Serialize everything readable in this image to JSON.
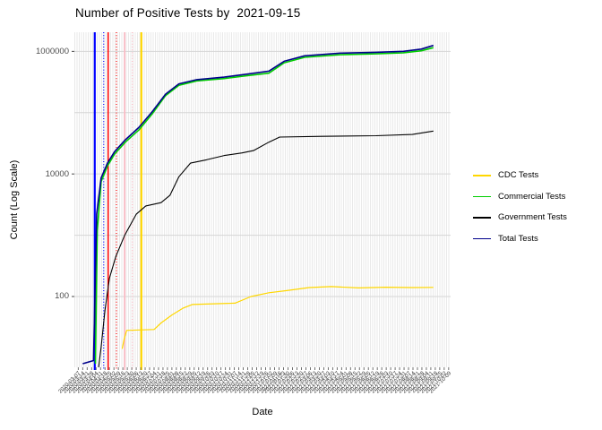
{
  "title": "Number of Positive Tests by  2021-09-15",
  "axes": {
    "y_title": "Count (Log Scale)",
    "x_title": "Date"
  },
  "legend": {
    "items": [
      {
        "label": "CDC Tests",
        "color": "#FFD700"
      },
      {
        "label": "Commercial Tests",
        "color": "#00CD00"
      },
      {
        "label": "Government Tests",
        "color": "#000000"
      },
      {
        "label": "Total Tests",
        "color": "#00008B"
      }
    ]
  },
  "colors": {
    "major_gridline": "#d6d6d6",
    "minor_stripe": "#e9e9e9",
    "tick": "#333333",
    "tick_label": "#4d4d4d"
  },
  "chart_data": {
    "type": "line",
    "title": "Number of Positive Tests by  2021-09-15",
    "xlabel": "Date",
    "ylabel": "Count (Log Scale)",
    "y_scale": "log10",
    "ylim": [
      7,
      2050000
    ],
    "x_domain": [
      "2020-03-01",
      "2021-10-12"
    ],
    "grid": "dense vertical minor stripes, horizontal major lines at powers of 10",
    "legend_position": "right",
    "y_ticks": [
      {
        "label": "1000000",
        "value": 1000000
      },
      {
        "label": "10000",
        "value": 10000
      },
      {
        "label": "100",
        "value": 100
      }
    ],
    "y_major_gridlines": [
      100,
      1000,
      10000,
      100000,
      1000000
    ],
    "x_tick_dates": [
      "2020-03-07",
      "2020-03-14",
      "2020-03-21",
      "2020-03-28",
      "2020-04-04",
      "2020-04-11",
      "2020-04-18",
      "2020-04-25",
      "2020-05-02",
      "2020-05-09",
      "2020-05-16",
      "2020-05-23",
      "2020-05-30",
      "2020-06-06",
      "2020-06-13",
      "2020-06-20",
      "2020-06-27",
      "2020-07-04",
      "2020-07-11",
      "2020-07-18",
      "2020-07-25",
      "2020-08-01",
      "2020-08-08",
      "2020-08-15",
      "2020-08-22",
      "2020-08-29",
      "2020-09-05",
      "2020-09-12",
      "2020-09-19",
      "2020-09-26",
      "2020-10-03",
      "2020-10-10",
      "2020-10-17",
      "2020-10-24",
      "2020-10-31",
      "2020-11-07",
      "2020-11-14",
      "2020-11-21",
      "2020-11-28",
      "2020-12-05",
      "2020-12-12",
      "2020-12-19",
      "2020-12-26",
      "2021-01-02",
      "2021-01-09",
      "2021-01-16",
      "2021-01-23",
      "2021-01-30",
      "2021-02-06",
      "2021-02-13",
      "2021-02-20",
      "2021-02-27",
      "2021-03-06",
      "2021-03-13",
      "2021-03-20",
      "2021-03-27",
      "2021-04-03",
      "2021-04-10",
      "2021-04-17",
      "2021-04-24",
      "2021-05-01",
      "2021-05-08",
      "2021-05-15",
      "2021-05-22",
      "2021-05-29",
      "2021-06-05",
      "2021-06-12",
      "2021-06-19",
      "2021-06-26",
      "2021-07-03",
      "2021-07-10",
      "2021-07-17",
      "2021-07-24",
      "2021-07-31",
      "2021-08-07",
      "2021-08-14",
      "2021-08-21",
      "2021-08-28",
      "2021-09-04",
      "2021-09-11",
      "2021-09-18",
      "2021-09-25",
      "2021-10-02",
      "2021-10-09"
    ],
    "vlines": [
      {
        "date": "2020-04-02",
        "color": "#0000FF",
        "style": "solid",
        "width": 2.2
      },
      {
        "date": "2020-04-16",
        "color": "#0000FF",
        "style": "dotted",
        "width": 1.2
      },
      {
        "date": "2020-04-23",
        "color": "#FF0000",
        "style": "solid",
        "width": 1.5
      },
      {
        "date": "2020-05-06",
        "color": "#FF0000",
        "style": "dotted",
        "width": 1.2
      },
      {
        "date": "2020-05-19",
        "color": "#FFB6C1",
        "style": "solid",
        "width": 1.5
      },
      {
        "date": "2020-05-31",
        "color": "#FFB6C1",
        "style": "dotted",
        "width": 1.2
      },
      {
        "date": "2020-06-14",
        "color": "#FFD700",
        "style": "solid",
        "width": 2.2
      }
    ],
    "series": [
      {
        "name": "CDC Tests",
        "color": "#FFD700",
        "width": 1.2,
        "points": [
          [
            "2020-05-15",
            14
          ],
          [
            "2020-05-18",
            20
          ],
          [
            "2020-05-22",
            28
          ],
          [
            "2020-07-04",
            29
          ],
          [
            "2020-07-15",
            37
          ],
          [
            "2020-08-01",
            50
          ],
          [
            "2020-08-19",
            65
          ],
          [
            "2020-09-02",
            74
          ],
          [
            "2020-11-08",
            78
          ],
          [
            "2020-12-03",
            100
          ],
          [
            "2020-12-31",
            115
          ],
          [
            "2021-01-28",
            125
          ],
          [
            "2021-03-04",
            140
          ],
          [
            "2021-04-08",
            145
          ],
          [
            "2021-05-21",
            138
          ],
          [
            "2021-07-02",
            142
          ],
          [
            "2021-08-13",
            140
          ],
          [
            "2021-09-15",
            141
          ]
        ]
      },
      {
        "name": "Commercial Tests",
        "color": "#00CD00",
        "width": 1.6,
        "points": [
          [
            "2020-04-03",
            8
          ],
          [
            "2020-04-06",
            1200
          ],
          [
            "2020-04-12",
            7500
          ],
          [
            "2020-04-22",
            13500
          ],
          [
            "2020-05-03",
            21000
          ],
          [
            "2020-05-20",
            33000
          ],
          [
            "2020-06-10",
            52000
          ],
          [
            "2020-07-01",
            95000
          ],
          [
            "2020-07-22",
            190000
          ],
          [
            "2020-08-12",
            280000
          ],
          [
            "2020-09-09",
            330000
          ],
          [
            "2020-10-22",
            360000
          ],
          [
            "2020-11-26",
            400000
          ],
          [
            "2020-12-31",
            440000
          ],
          [
            "2021-01-24",
            650000
          ],
          [
            "2021-02-25",
            800000
          ],
          [
            "2021-04-22",
            880000
          ],
          [
            "2021-06-17",
            910000
          ],
          [
            "2021-07-30",
            950000
          ],
          [
            "2021-08-27",
            1020000
          ],
          [
            "2021-09-15",
            1150000
          ]
        ]
      },
      {
        "name": "Government Tests",
        "color": "#000000",
        "width": 1.1,
        "points": [
          [
            "2020-04-08",
            7
          ],
          [
            "2020-04-12",
            15
          ],
          [
            "2020-04-18",
            60
          ],
          [
            "2020-04-25",
            200
          ],
          [
            "2020-05-05",
            450
          ],
          [
            "2020-05-19",
            1000
          ],
          [
            "2020-06-06",
            2200
          ],
          [
            "2020-06-21",
            3000
          ],
          [
            "2020-07-15",
            3400
          ],
          [
            "2020-07-29",
            4500
          ],
          [
            "2020-08-12",
            9000
          ],
          [
            "2020-08-30",
            15000
          ],
          [
            "2020-09-24",
            17000
          ],
          [
            "2020-10-22",
            20000
          ],
          [
            "2020-11-19",
            22000
          ],
          [
            "2020-12-07",
            24000
          ],
          [
            "2020-12-31",
            33000
          ],
          [
            "2021-01-17",
            40000
          ],
          [
            "2021-03-24",
            41000
          ],
          [
            "2021-06-17",
            42000
          ],
          [
            "2021-08-13",
            44000
          ],
          [
            "2021-09-15",
            50000
          ]
        ]
      },
      {
        "name": "Total Tests",
        "color": "#00008B",
        "width": 1.6,
        "points": [
          [
            "2020-03-14",
            8
          ],
          [
            "2020-03-31",
            9
          ],
          [
            "2020-04-02",
            80
          ],
          [
            "2020-04-05",
            2200
          ],
          [
            "2020-04-12",
            8600
          ],
          [
            "2020-04-22",
            15000
          ],
          [
            "2020-05-03",
            23000
          ],
          [
            "2020-05-20",
            36000
          ],
          [
            "2020-06-10",
            57000
          ],
          [
            "2020-07-01",
            103000
          ],
          [
            "2020-07-22",
            200000
          ],
          [
            "2020-08-12",
            295000
          ],
          [
            "2020-09-09",
            345000
          ],
          [
            "2020-10-22",
            380000
          ],
          [
            "2020-11-26",
            425000
          ],
          [
            "2020-12-31",
            475000
          ],
          [
            "2021-01-24",
            690000
          ],
          [
            "2021-02-25",
            845000
          ],
          [
            "2021-04-22",
            935000
          ],
          [
            "2021-06-17",
            965000
          ],
          [
            "2021-07-30",
            1000000
          ],
          [
            "2021-08-27",
            1090000
          ],
          [
            "2021-09-15",
            1250000
          ]
        ]
      }
    ]
  }
}
